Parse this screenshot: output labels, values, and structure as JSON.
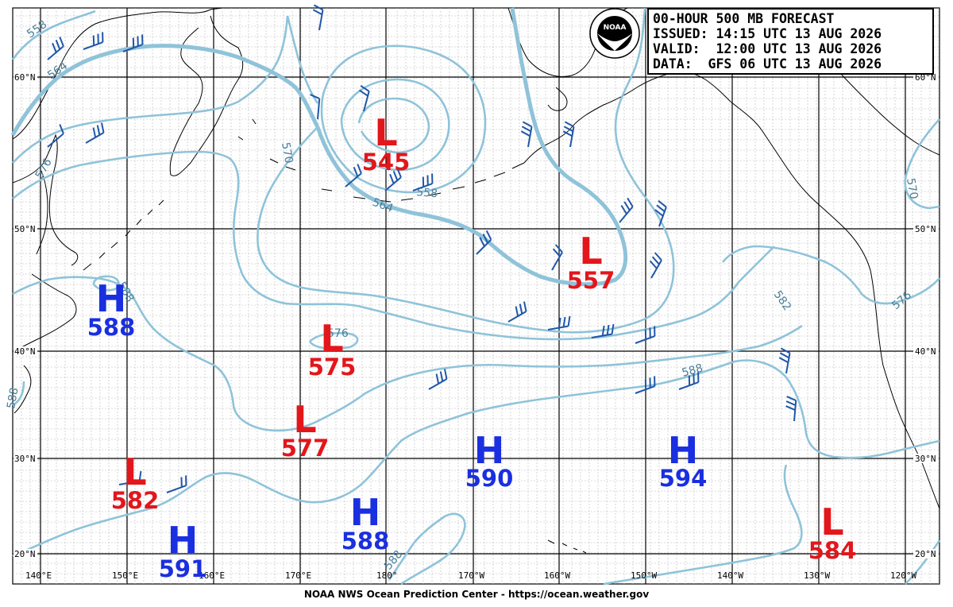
{
  "title_box": {
    "line1": "00-HOUR 500 MB FORECAST",
    "line2": "ISSUED: 14:15 UTC 13 AUG 2026",
    "line3": "VALID:  12:00 UTC 13 AUG 2026",
    "line4": "DATA:  GFS 06 UTC 13 AUG 2026"
  },
  "logo": {
    "icon": "noaa-logo",
    "text": "NOAA"
  },
  "footer": "NOAA NWS Ocean Prediction Center - https://ocean.weather.gov",
  "colors": {
    "high": "#1a2fe0",
    "low": "#e3161b",
    "contour": "#8fc3d9",
    "barb": "#1f57a8"
  },
  "latitude_labels": [
    "60°N",
    "50°N",
    "40°N",
    "30°N",
    "20°N"
  ],
  "longitude_labels": [
    "140°E",
    "150°E",
    "160°E",
    "170°E",
    "180°",
    "170°W",
    "160°W",
    "150°W",
    "140°W",
    "130°W",
    "120°W"
  ],
  "contour_labels": [
    "558",
    "564",
    "576",
    "570",
    "564",
    "558",
    "588",
    "576",
    "588",
    "582",
    "576",
    "570",
    "588",
    "588"
  ],
  "pressure_systems": [
    {
      "type": "L",
      "value": "545"
    },
    {
      "type": "L",
      "value": "557"
    },
    {
      "type": "H",
      "value": "588"
    },
    {
      "type": "L",
      "value": "575"
    },
    {
      "type": "L",
      "value": "577"
    },
    {
      "type": "L",
      "value": "582"
    },
    {
      "type": "H",
      "value": "590"
    },
    {
      "type": "H",
      "value": "594"
    },
    {
      "type": "H",
      "value": "588"
    },
    {
      "type": "H",
      "value": "591"
    },
    {
      "type": "L",
      "value": "584"
    }
  ]
}
